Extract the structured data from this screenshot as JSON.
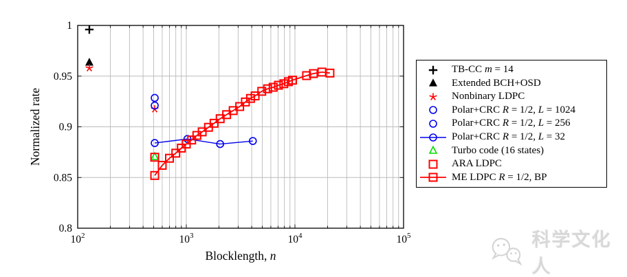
{
  "watermark": {
    "text": "科学文化人"
  },
  "chart_data": {
    "type": "scatter",
    "title": "",
    "xlabel": "Blocklength, n",
    "ylabel": "Normalized rate",
    "x_scale": "log",
    "x_range": [
      100,
      100000
    ],
    "y_range": [
      0.8,
      1.0
    ],
    "x_tick_exponents": [
      2,
      3,
      4,
      5
    ],
    "y_ticks": [
      1,
      0.95,
      0.9,
      0.85,
      0.8
    ],
    "y_tick_labels": [
      "1",
      "0.95",
      "0.9",
      "0.85",
      "0.8"
    ],
    "grid": true,
    "legend_position": "outside-right",
    "series": [
      {
        "name": "tb-cc",
        "label": "TB-CC m = 14",
        "color": "#000000",
        "marker": "plus",
        "line": false,
        "points": [
          [
            128,
            0.996
          ]
        ]
      },
      {
        "name": "extended-bch-osd",
        "label": "Extended BCH+OSD",
        "color": "#000000",
        "marker": "triangle-filled",
        "line": false,
        "points": [
          [
            128,
            0.9635
          ]
        ]
      },
      {
        "name": "nonbinary-ldpc",
        "label": "Nonbinary LDPC",
        "color": "#ff0000",
        "marker": "star",
        "line": false,
        "points": [
          [
            128,
            0.958
          ],
          [
            512,
            0.9175
          ]
        ]
      },
      {
        "name": "polar-crc-l1024",
        "label": "Polar+CRC R = 1/2, L = 1024",
        "color": "#0000ee",
        "marker": "circle",
        "line": false,
        "points": [
          [
            512,
            0.9285
          ]
        ]
      },
      {
        "name": "polar-crc-l256",
        "label": "Polar+CRC R = 1/2, L = 256",
        "color": "#0000ee",
        "marker": "circle",
        "line": false,
        "points": [
          [
            512,
            0.921
          ]
        ]
      },
      {
        "name": "polar-crc-l32",
        "label": "Polar+CRC R = 1/2, L = 32",
        "color": "#0000ee",
        "marker": "circle",
        "line": true,
        "points": [
          [
            512,
            0.884
          ],
          [
            1024,
            0.888
          ],
          [
            2048,
            0.883
          ],
          [
            4096,
            0.886
          ]
        ]
      },
      {
        "name": "turbo-code",
        "label": "Turbo code (16 states)",
        "color": "#00dd00",
        "marker": "triangle-open",
        "line": false,
        "points": [
          [
            512,
            0.8705
          ]
        ]
      },
      {
        "name": "ara-ldpc",
        "label": "ARA LDPC",
        "color": "#ff0000",
        "marker": "square",
        "line": false,
        "points": [
          [
            512,
            0.87
          ]
        ]
      },
      {
        "name": "me-ldpc",
        "label": "ME LDPC R = 1/2, BP",
        "color": "#ff0000",
        "marker": "square",
        "line": true,
        "points": [
          [
            512,
            0.852
          ],
          [
            600,
            0.862
          ],
          [
            700,
            0.869
          ],
          [
            800,
            0.874
          ],
          [
            900,
            0.879
          ],
          [
            1000,
            0.883
          ],
          [
            1120,
            0.887
          ],
          [
            1250,
            0.8915
          ],
          [
            1400,
            0.895
          ],
          [
            1600,
            0.8995
          ],
          [
            1800,
            0.9035
          ],
          [
            2050,
            0.908
          ],
          [
            2350,
            0.912
          ],
          [
            2700,
            0.916
          ],
          [
            3100,
            0.92
          ],
          [
            3500,
            0.9245
          ],
          [
            3900,
            0.928
          ],
          [
            4300,
            0.9305
          ],
          [
            4950,
            0.935
          ],
          [
            5600,
            0.9375
          ],
          [
            6300,
            0.939
          ],
          [
            7050,
            0.941
          ],
          [
            7900,
            0.9425
          ],
          [
            8700,
            0.9445
          ],
          [
            9500,
            0.946
          ],
          [
            12800,
            0.9505
          ],
          [
            14800,
            0.9525
          ],
          [
            17700,
            0.954
          ],
          [
            21000,
            0.953
          ]
        ]
      }
    ]
  }
}
